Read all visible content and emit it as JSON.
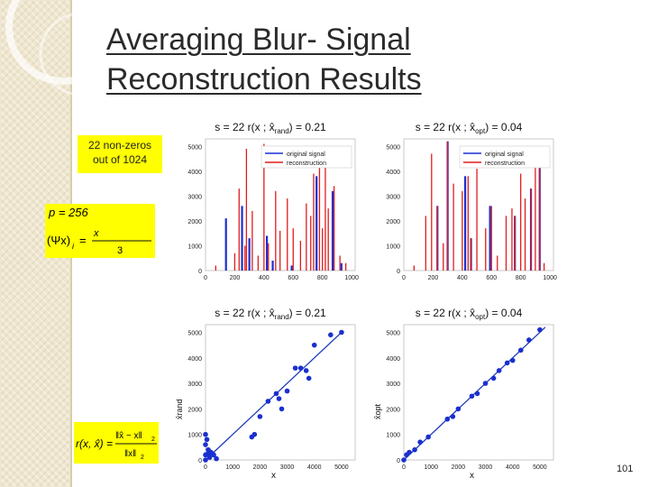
{
  "slide": {
    "title_line1": "Averaging Blur- Signal",
    "title_line2": "Reconstruction Results",
    "page_number": "101",
    "note_line1": "22 non-zeros",
    "note_line2": "out of 1024"
  },
  "formulas": {
    "p_value": "p = 256",
    "psi_lhs": "(Ψx)",
    "psi_sub": "i",
    "psi_eq": "=",
    "psi_num": "x",
    "psi_den": "3",
    "r_def": "r(x, x̂) =",
    "r_num": "‖x̂ − x‖",
    "r_den": "‖x‖",
    "r_sub": "2"
  },
  "colors": {
    "highlight": "#ffff00",
    "original": "#1a2fd0",
    "reconstruction": "#e11b1b",
    "fit": "#1f3db8"
  },
  "chart_data": [
    {
      "type": "bar",
      "title_s": "s = 22",
      "title_r": "r(x ; x̂",
      "title_sub": "rand",
      "title_val": ") =  0.21",
      "legend": [
        "original signal",
        "reconstruction"
      ],
      "x_ticks": [
        "0",
        "200",
        "400",
        "600",
        "800",
        "1000"
      ],
      "y_ticks": [
        "0",
        "1000",
        "2000",
        "3000",
        "4000",
        "5000"
      ],
      "xlim": [
        0,
        1024
      ],
      "ylim": [
        0,
        5300
      ],
      "series": [
        {
          "name": "original signal",
          "x": [
            140,
            250,
            300,
            420,
            460,
            590,
            760,
            870,
            930
          ],
          "values": [
            2100,
            2600,
            1300,
            1400,
            400,
            200,
            3800,
            3200,
            300
          ]
        },
        {
          "name": "reconstruction",
          "x": [
            70,
            200,
            230,
            270,
            280,
            320,
            360,
            400,
            430,
            480,
            510,
            560,
            600,
            650,
            690,
            720,
            740,
            780,
            800,
            820,
            840,
            880,
            920,
            960
          ],
          "values": [
            200,
            700,
            3300,
            1000,
            4900,
            2400,
            600,
            5100,
            1100,
            3200,
            1600,
            2900,
            1700,
            1200,
            2700,
            2200,
            3900,
            4600,
            1700,
            5000,
            2500,
            3400,
            600,
            300
          ]
        }
      ]
    },
    {
      "type": "bar",
      "title_s": "s = 22",
      "title_r": "r(x ; x̂",
      "title_sub": "opt",
      "title_val": ") =  0.04",
      "legend": [
        "original signal",
        "reconstruction"
      ],
      "x_ticks": [
        "0",
        "200",
        "400",
        "600",
        "800",
        "1000"
      ],
      "y_ticks": [
        "0",
        "1000",
        "2000",
        "3000",
        "4000",
        "5000"
      ],
      "xlim": [
        0,
        1024
      ],
      "ylim": [
        0,
        5300
      ],
      "series": [
        {
          "name": "original signal",
          "x": [
            230,
            300,
            420,
            460,
            590,
            760,
            870,
            930
          ],
          "values": [
            2600,
            5200,
            3800,
            1300,
            2600,
            2200,
            3300,
            4900
          ]
        },
        {
          "name": "reconstruction",
          "x": [
            70,
            150,
            190,
            230,
            270,
            300,
            340,
            400,
            440,
            460,
            500,
            560,
            600,
            640,
            700,
            740,
            760,
            800,
            830,
            870,
            900,
            930,
            960
          ],
          "values": [
            200,
            2200,
            4700,
            2600,
            1100,
            5200,
            3500,
            3200,
            3800,
            1300,
            4100,
            1700,
            2600,
            600,
            2200,
            2500,
            2200,
            3900,
            2900,
            3300,
            4300,
            4900,
            300
          ]
        }
      ]
    },
    {
      "type": "scatter",
      "title_s": "s = 22",
      "title_r": "r(x ; x̂",
      "title_sub": "rand",
      "title_val": ") =  0.21",
      "xlabel": "x",
      "ylabel": "x̂rand",
      "x_ticks": [
        "0",
        "1000",
        "2000",
        "3000",
        "4000",
        "5000"
      ],
      "y_ticks": [
        "0",
        "1000",
        "2000",
        "3000",
        "4000",
        "5000"
      ],
      "xlim": [
        0,
        5500
      ],
      "ylim": [
        0,
        5300
      ],
      "x": [
        0,
        0,
        50,
        100,
        150,
        200,
        300,
        400,
        0,
        0,
        100,
        1700,
        1800,
        2000,
        2300,
        2600,
        2700,
        2800,
        3000,
        3300,
        3500,
        3700,
        3800,
        4000,
        4600,
        5000
      ],
      "y": [
        0,
        200,
        800,
        400,
        100,
        300,
        200,
        50,
        1000,
        600,
        250,
        900,
        1000,
        1700,
        2300,
        2600,
        2400,
        2000,
        2700,
        3600,
        3600,
        3500,
        3200,
        4500,
        4900,
        5000
      ],
      "fit_line": [
        [
          0,
          0
        ],
        [
          5000,
          5000
        ]
      ]
    },
    {
      "type": "scatter",
      "title_s": "s = 22",
      "title_r": "r(x ; x̂",
      "title_sub": "opt",
      "title_val": ") =  0.04",
      "xlabel": "x",
      "ylabel": "x̂opt",
      "x_ticks": [
        "0",
        "1000",
        "2000",
        "3000",
        "4000",
        "5000"
      ],
      "y_ticks": [
        "0",
        "1000",
        "2000",
        "3000",
        "4000",
        "5000"
      ],
      "xlim": [
        0,
        5500
      ],
      "ylim": [
        0,
        5300
      ],
      "x": [
        0,
        100,
        200,
        400,
        600,
        900,
        1600,
        1800,
        2000,
        2500,
        2700,
        3000,
        3300,
        3500,
        3800,
        4000,
        4300,
        4600,
        5000
      ],
      "y": [
        0,
        200,
        300,
        400,
        700,
        900,
        1600,
        1700,
        2000,
        2500,
        2600,
        3000,
        3200,
        3500,
        3800,
        3900,
        4300,
        4700,
        5100
      ],
      "fit_line": [
        [
          0,
          0
        ],
        [
          5200,
          5200
        ]
      ]
    }
  ]
}
